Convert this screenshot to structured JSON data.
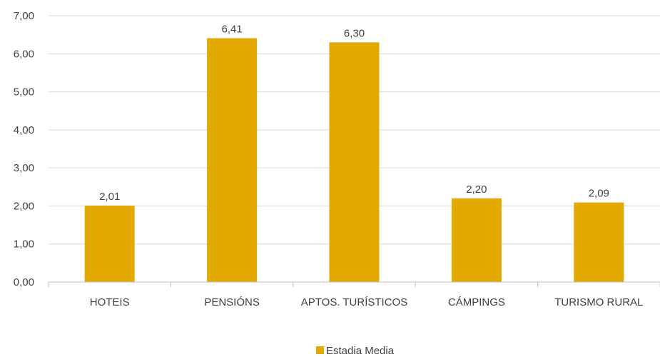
{
  "chart_data": {
    "type": "bar",
    "categories": [
      "HOTEIS",
      "PENSIÓNS",
      "APTOS. TURÍSTICOS",
      "CÁMPINGS",
      "TURISMO RURAL"
    ],
    "series": [
      {
        "name": "Estadia Media",
        "values": [
          2.01,
          6.41,
          6.3,
          2.2,
          2.09
        ],
        "labels": [
          "2,01",
          "6,41",
          "6,30",
          "2,20",
          "2,09"
        ],
        "color": "#E2AA00"
      }
    ],
    "ylim": [
      0,
      7
    ],
    "yticks": [
      "0,00",
      "1,00",
      "2,00",
      "3,00",
      "4,00",
      "5,00",
      "6,00",
      "7,00"
    ],
    "grid": true,
    "legend_position": "bottom"
  }
}
